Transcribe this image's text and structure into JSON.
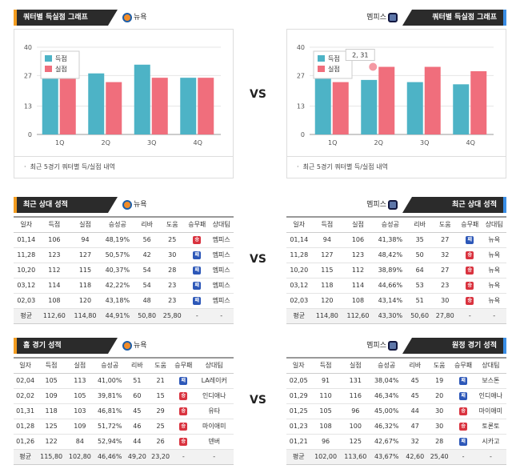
{
  "colors": {
    "scored": "#4db3c6",
    "conceded": "#f06e7c",
    "accent_left": "#f39c1f",
    "accent_right": "#3a8ee6",
    "win": "#d9333f",
    "loss": "#2c57b8"
  },
  "vs": "VS",
  "left_team": "뉴욕",
  "right_team": "멤피스",
  "chart_section": {
    "left_title": "쿼터별 득실점 그래프",
    "right_title": "쿼터별 득실점 그래프",
    "note": "최근 5경기 쿼터별 득/실점 내역"
  },
  "chart_data": [
    {
      "type": "bar",
      "team": "뉴욕",
      "categories": [
        "1Q",
        "2Q",
        "3Q",
        "4Q"
      ],
      "series": [
        {
          "name": "득점",
          "values": [
            26,
            28,
            32,
            26
          ]
        },
        {
          "name": "실점",
          "values": [
            28,
            24,
            26,
            26
          ]
        }
      ],
      "ylim": [
        0,
        40
      ],
      "yticks": [
        0,
        13,
        27,
        40
      ],
      "legend": "top-left"
    },
    {
      "type": "bar",
      "team": "멤피스",
      "categories": [
        "1Q",
        "2Q",
        "3Q",
        "4Q"
      ],
      "series": [
        {
          "name": "득점",
          "values": [
            26,
            25,
            24,
            23
          ]
        },
        {
          "name": "실점",
          "values": [
            24,
            31,
            31,
            29
          ]
        }
      ],
      "ylim": [
        0,
        40
      ],
      "yticks": [
        0,
        13,
        27,
        40
      ],
      "legend": "top-left",
      "tooltip": "2, 31"
    }
  ],
  "columns": [
    "일자",
    "득점",
    "실점",
    "승성공",
    "리바",
    "도움",
    "승무패",
    "상대팀"
  ],
  "recent": {
    "left_title": "최근 상대 성적",
    "right_title": "최근 상대 성적",
    "left_rows": [
      [
        "01,14",
        "106",
        "94",
        "48,19%",
        "56",
        "25",
        "승",
        "멤피스"
      ],
      [
        "11,28",
        "123",
        "127",
        "50,57%",
        "42",
        "30",
        "패",
        "멤피스"
      ],
      [
        "10,20",
        "112",
        "115",
        "40,37%",
        "54",
        "28",
        "패",
        "멤피스"
      ],
      [
        "03,12",
        "114",
        "118",
        "42,22%",
        "54",
        "23",
        "패",
        "멤피스"
      ],
      [
        "02,03",
        "108",
        "120",
        "43,18%",
        "48",
        "23",
        "패",
        "멤피스"
      ]
    ],
    "left_avg": [
      "평균",
      "112,60",
      "114,80",
      "44,91%",
      "50,80",
      "25,80",
      "-",
      "-"
    ],
    "right_rows": [
      [
        "01,14",
        "94",
        "106",
        "41,38%",
        "35",
        "27",
        "패",
        "뉴욕"
      ],
      [
        "11,28",
        "127",
        "123",
        "48,42%",
        "50",
        "32",
        "승",
        "뉴욕"
      ],
      [
        "10,20",
        "115",
        "112",
        "38,89%",
        "64",
        "27",
        "승",
        "뉴욕"
      ],
      [
        "03,12",
        "118",
        "114",
        "44,66%",
        "53",
        "23",
        "승",
        "뉴욕"
      ],
      [
        "02,03",
        "120",
        "108",
        "43,14%",
        "51",
        "30",
        "승",
        "뉴욕"
      ]
    ],
    "right_avg": [
      "평균",
      "114,80",
      "112,60",
      "43,30%",
      "50,60",
      "27,80",
      "-",
      "-"
    ]
  },
  "homeaway": {
    "left_title": "홈 경기 성적",
    "right_title": "원정 경기 성적",
    "left_rows": [
      [
        "02,04",
        "105",
        "113",
        "41,00%",
        "51",
        "21",
        "패",
        "LA레이커"
      ],
      [
        "02,02",
        "109",
        "105",
        "39,81%",
        "60",
        "15",
        "승",
        "인디애나"
      ],
      [
        "01,31",
        "118",
        "103",
        "46,81%",
        "45",
        "29",
        "승",
        "유타"
      ],
      [
        "01,28",
        "125",
        "109",
        "51,72%",
        "46",
        "25",
        "승",
        "마이애미"
      ],
      [
        "01,26",
        "122",
        "84",
        "52,94%",
        "44",
        "26",
        "승",
        "덴버"
      ]
    ],
    "left_avg": [
      "평균",
      "115,80",
      "102,80",
      "46,46%",
      "49,20",
      "23,20",
      "-",
      "-"
    ],
    "right_rows": [
      [
        "02,05",
        "91",
        "131",
        "38,04%",
        "45",
        "19",
        "패",
        "보스톤"
      ],
      [
        "01,29",
        "110",
        "116",
        "46,34%",
        "45",
        "20",
        "패",
        "인디애나"
      ],
      [
        "01,25",
        "105",
        "96",
        "45,00%",
        "44",
        "30",
        "승",
        "마이애미"
      ],
      [
        "01,23",
        "108",
        "100",
        "46,32%",
        "47",
        "30",
        "승",
        "토론토"
      ],
      [
        "01,21",
        "96",
        "125",
        "42,67%",
        "32",
        "28",
        "패",
        "시카고"
      ]
    ],
    "right_avg": [
      "평균",
      "102,00",
      "113,60",
      "43,67%",
      "42,60",
      "25,40",
      "-",
      "-"
    ]
  }
}
